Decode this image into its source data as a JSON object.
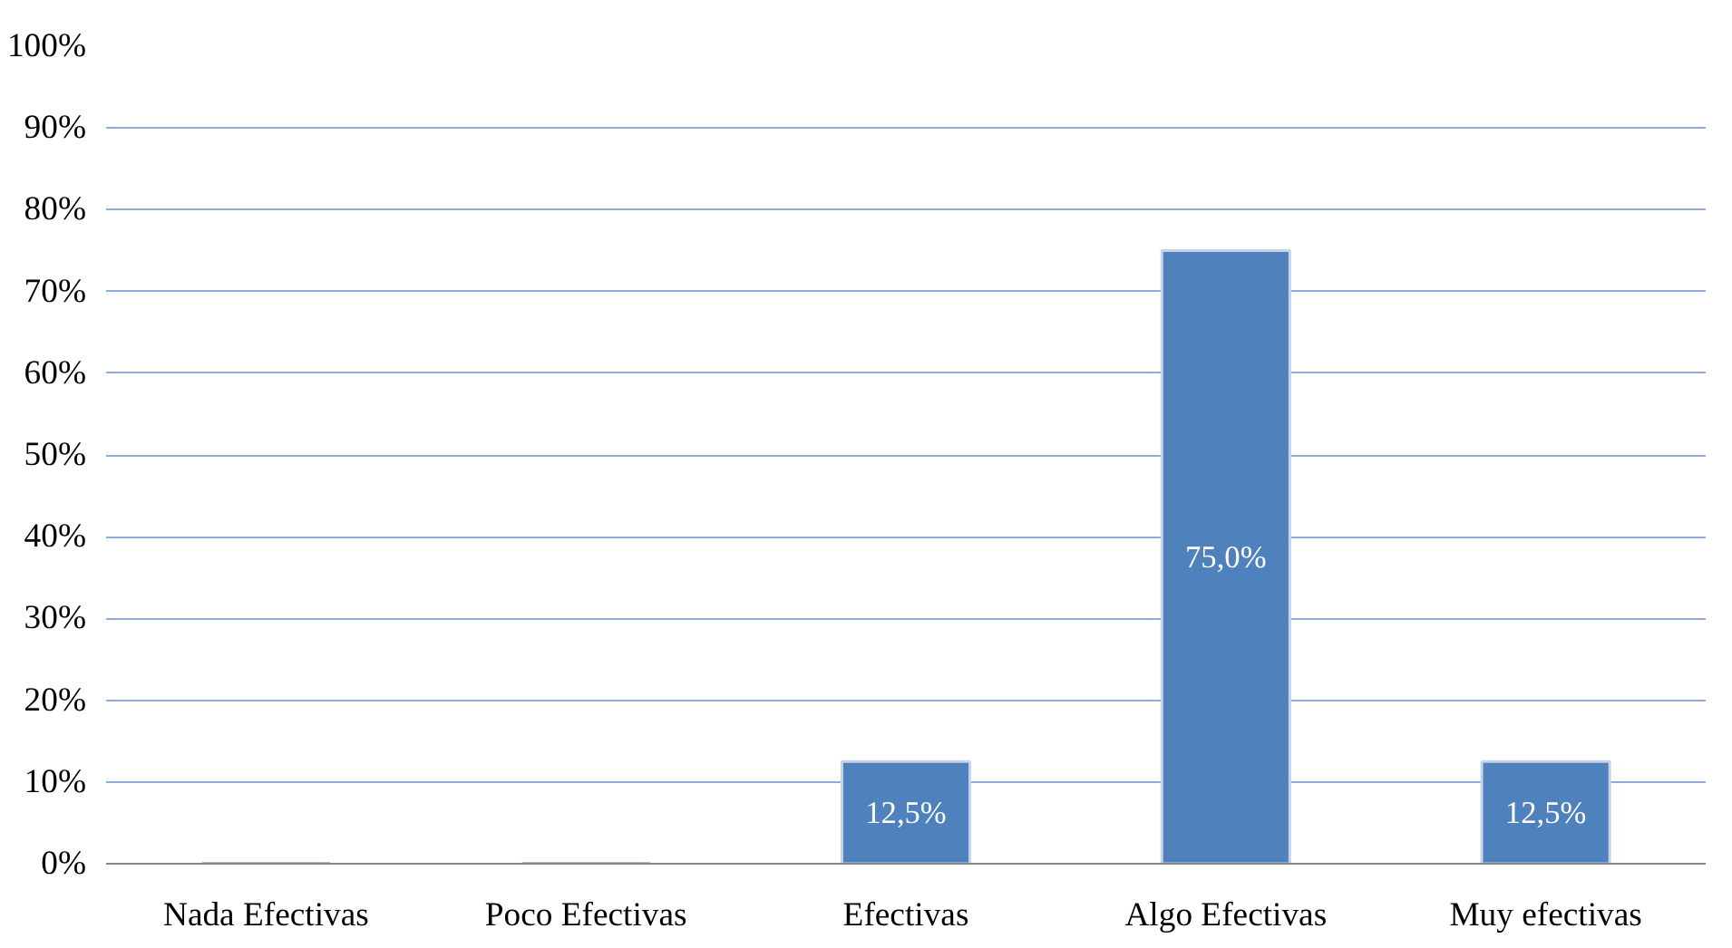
{
  "chart_data": {
    "type": "bar",
    "categories": [
      "Nada Efectivas",
      "Poco Efectivas",
      "Efectivas",
      "Algo Efectivas",
      "Muy efectivas"
    ],
    "values": [
      0,
      0,
      12.5,
      75,
      12.5
    ],
    "value_labels": [
      null,
      null,
      "12,5%",
      "75,0%",
      "12,5%"
    ],
    "color": "#4f81bd",
    "ylim": [
      0,
      100
    ],
    "yticks": [
      {
        "value": 0,
        "label": "0%"
      },
      {
        "value": 10,
        "label": "10%"
      },
      {
        "value": 20,
        "label": "20%"
      },
      {
        "value": 30,
        "label": "30%"
      },
      {
        "value": 40,
        "label": "40%"
      },
      {
        "value": 50,
        "label": "50%"
      },
      {
        "value": 60,
        "label": "60%"
      },
      {
        "value": 70,
        "label": "70%"
      },
      {
        "value": 80,
        "label": "80%"
      },
      {
        "value": 90,
        "label": "90%"
      },
      {
        "value": 100,
        "label": "100%"
      }
    ],
    "grid": "y"
  }
}
